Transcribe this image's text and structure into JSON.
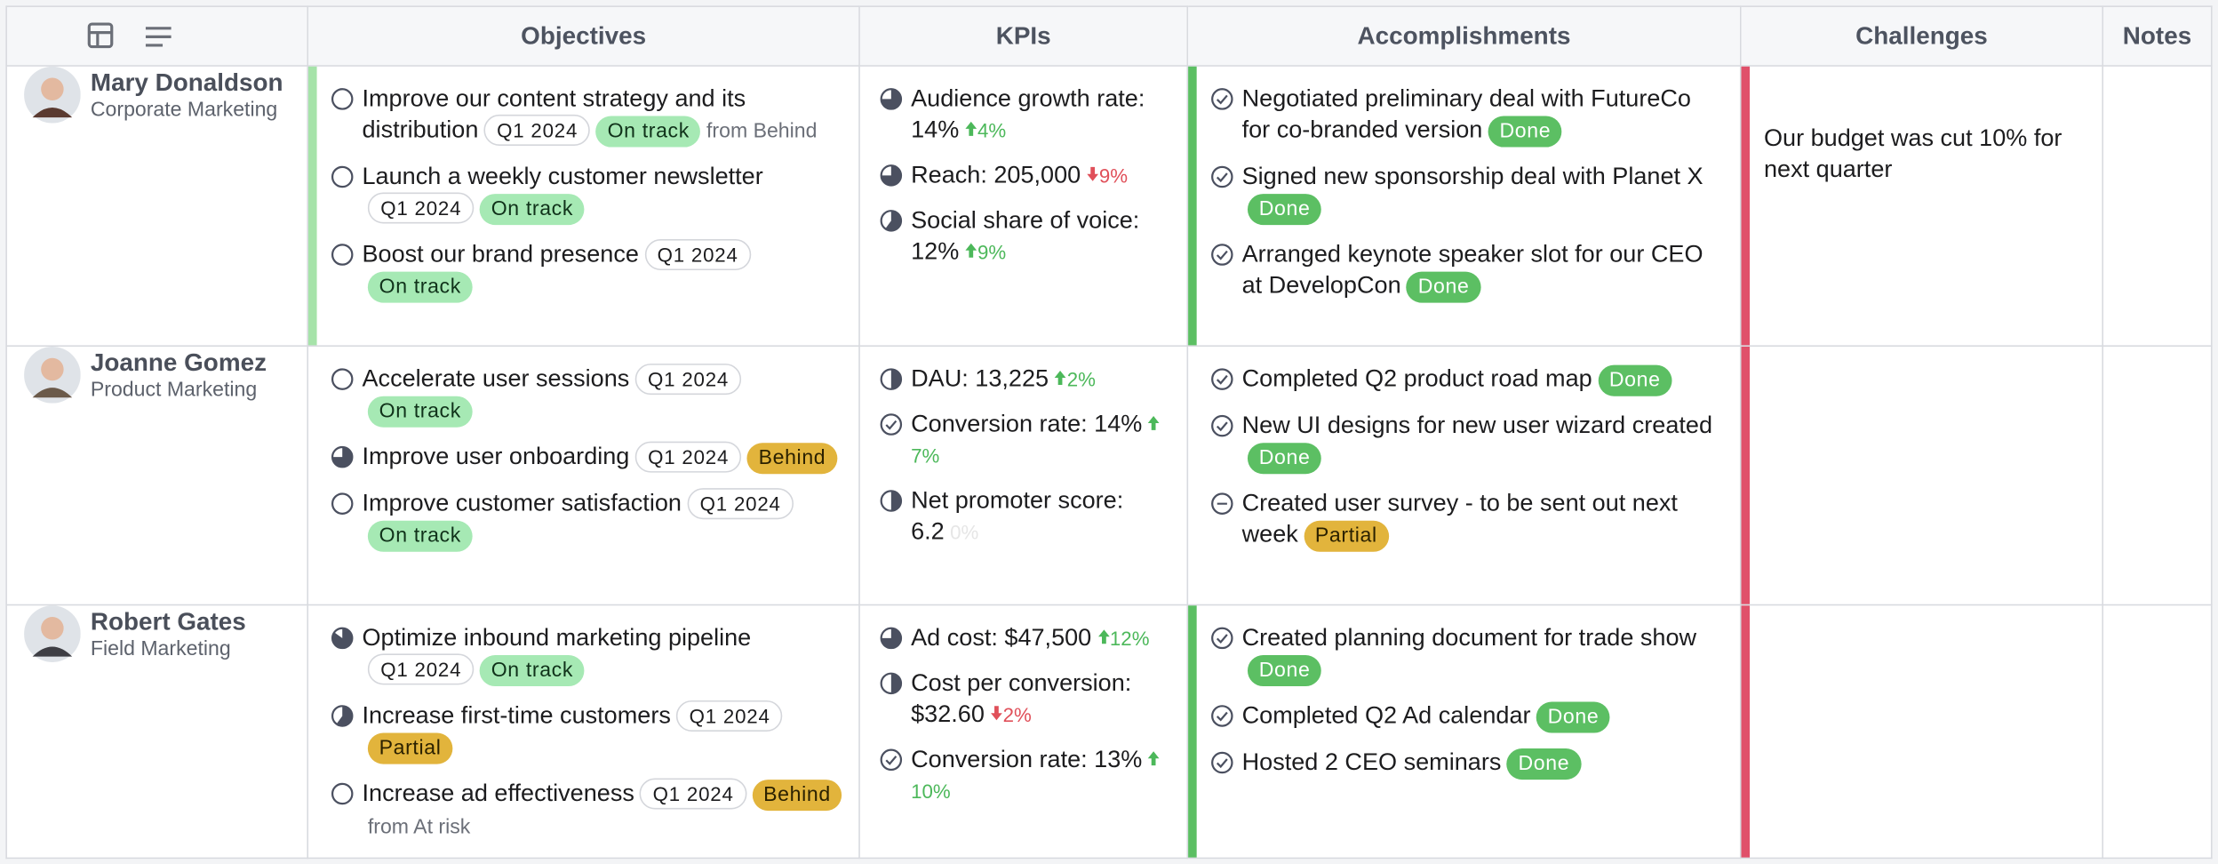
{
  "header": {
    "columns": [
      "Objectives",
      "KPIs",
      "Accomplishments",
      "Challenges",
      "Notes"
    ]
  },
  "rows": [
    {
      "name": "Mary Donaldson",
      "team": "Corporate Marketing",
      "avatar_color": "#5a3a30",
      "objectives_accent": "#a6e3a9",
      "accomplishments_accent": "#5cbf63",
      "challenges_accent": "#e0506a",
      "objectives": [
        {
          "text": "Improve our content strategy and its distribution",
          "progress": 0,
          "period": "Q1 2024",
          "status": "On track",
          "from": "from Behind"
        },
        {
          "text": "Launch a weekly customer newsletter",
          "progress": 0,
          "period": "Q1 2024",
          "status": "On track"
        },
        {
          "text": "Boost our brand presence",
          "progress": 0,
          "period": "Q1 2024",
          "status": "On track"
        }
      ],
      "kpis": [
        {
          "text": "Audience growth rate: 14%",
          "progress": 0.75,
          "change": "4%",
          "direction": "up"
        },
        {
          "text": "Reach: 205,000",
          "progress": 0.75,
          "change": "9%",
          "direction": "down"
        },
        {
          "text": "Social share of voice: 12%",
          "progress": 0.6,
          "change": "9%",
          "direction": "up"
        }
      ],
      "accomplishments": [
        {
          "text": "Negotiated preliminary deal with FutureCo for co-branded version",
          "icon": "check",
          "status": "Done"
        },
        {
          "text": "Signed new sponsorship deal with Planet X",
          "icon": "check",
          "status": "Done"
        },
        {
          "text": "Arranged keynote speaker slot for our CEO at DevelopCon",
          "icon": "check",
          "status": "Done"
        }
      ],
      "challenges": "Our budget was cut 10% for next quarter"
    },
    {
      "name": "Joanne Gomez",
      "team": "Product Marketing",
      "avatar_color": "#6b5a4a",
      "objectives_accent": null,
      "accomplishments_accent": null,
      "challenges_accent": "#e0506a",
      "objectives": [
        {
          "text": "Accelerate user sessions",
          "progress": 0,
          "period": "Q1 2024",
          "status": "On track"
        },
        {
          "text": "Improve user onboarding",
          "progress": 0.75,
          "period": "Q1 2024",
          "status": "Behind"
        },
        {
          "text": "Improve customer satisfaction",
          "progress": 0,
          "period": "Q1 2024",
          "status": "On track"
        }
      ],
      "kpis": [
        {
          "text": "DAU: 13,225",
          "progress": 0.5,
          "change": "2%",
          "direction": "up"
        },
        {
          "text": "Conversion rate: 14%",
          "check": true,
          "change": "7%",
          "direction": "up"
        },
        {
          "text": "Net promoter score: 6.2",
          "progress": 0.5,
          "change": "0%",
          "direction": "flat"
        }
      ],
      "accomplishments": [
        {
          "text": "Completed Q2 product road map",
          "icon": "check",
          "status": "Done"
        },
        {
          "text": "New UI designs for new user wizard created",
          "icon": "check",
          "status": "Done"
        },
        {
          "text": "Created user survey - to be sent out next week",
          "icon": "minus",
          "status": "Partial"
        }
      ],
      "challenges": ""
    },
    {
      "name": "Robert Gates",
      "team": "Field Marketing",
      "avatar_color": "#3e3e44",
      "objectives_accent": null,
      "accomplishments_accent": "#5cbf63",
      "challenges_accent": "#e0506a",
      "objectives": [
        {
          "text": "Optimize inbound marketing pipeline",
          "progress": 0.85,
          "period": "Q1 2024",
          "status": "On track"
        },
        {
          "text": "Increase first-time customers",
          "progress": 0.6,
          "period": "Q1 2024",
          "status": "Partial"
        },
        {
          "text": "Increase ad effectiveness",
          "progress": 0,
          "period": "Q1 2024",
          "status": "Behind",
          "from": "from At risk"
        }
      ],
      "kpis": [
        {
          "text": "Ad cost: $47,500",
          "progress": 0.75,
          "change": "12%",
          "direction": "up"
        },
        {
          "text": "Cost per conversion: $32.60",
          "progress": 0.5,
          "change": "2%",
          "direction": "down"
        },
        {
          "text": "Conversion rate: 13%",
          "check": true,
          "change": "10%",
          "direction": "up"
        }
      ],
      "accomplishments": [
        {
          "text": "Created planning document for trade show",
          "icon": "check",
          "status": "Done"
        },
        {
          "text": "Completed Q2 Ad calendar",
          "icon": "check",
          "status": "Done"
        },
        {
          "text": "Hosted 2 CEO seminars",
          "icon": "check",
          "status": "Done"
        }
      ],
      "challenges": ""
    }
  ]
}
